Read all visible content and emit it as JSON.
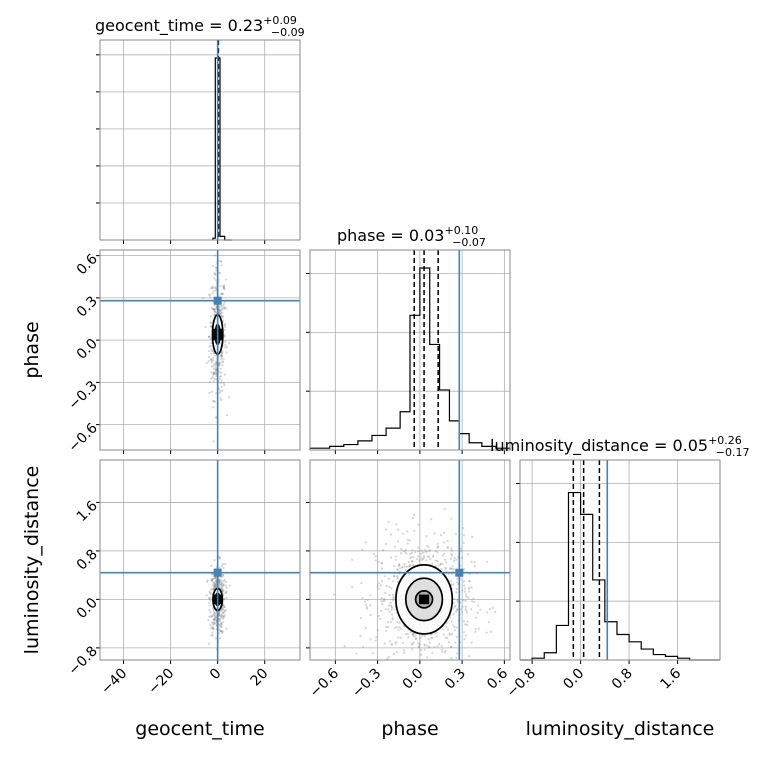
{
  "chart_data": {
    "type": "corner",
    "parameters": [
      "geocent_time",
      "phase",
      "luminosity_distance"
    ],
    "truths": [
      0.0,
      0.28,
      0.44
    ],
    "truth_color": "#4682b4",
    "grid": true,
    "titles": [
      {
        "name": "geocent_time",
        "median": "0.23",
        "plus": "+0.09",
        "minus": "−0.09"
      },
      {
        "name": "phase",
        "median": "0.03",
        "plus": "+0.10",
        "minus": "−0.07"
      },
      {
        "name": "luminosity_distance",
        "median": "0.05",
        "plus": "+0.26",
        "minus": "−0.17"
      }
    ],
    "axes": {
      "geocent_time": {
        "range": [
          -50,
          35
        ],
        "ticks": [
          -40,
          -20,
          0,
          20
        ],
        "tick_labels": [
          "−40",
          "−20",
          "0",
          "20"
        ]
      },
      "phase": {
        "range": [
          -0.78,
          0.64
        ],
        "ticks": [
          -0.6,
          -0.3,
          0.0,
          0.3,
          0.6
        ],
        "tick_labels": [
          "−0.6",
          "−0.3",
          "0.0",
          "0.3",
          "0.6"
        ]
      },
      "luminosity_distance": {
        "range": [
          -1.0,
          2.3
        ],
        "ticks": [
          -0.8,
          0.0,
          0.8,
          1.6
        ],
        "tick_labels": [
          "−0.8",
          "0.0",
          "0.8",
          "1.6"
        ]
      }
    },
    "marginals": {
      "geocent_time": {
        "bin_edges": [
          -2,
          -1,
          0,
          1,
          2,
          3,
          6
        ],
        "counts": [
          0.01,
          1.0,
          1.0,
          0.02,
          0.02,
          0.0
        ],
        "quantiles": [
          0.14,
          0.23,
          0.32
        ]
      },
      "phase": {
        "bin_edges": [
          -0.78,
          -0.64,
          -0.54,
          -0.44,
          -0.34,
          -0.24,
          -0.14,
          -0.07,
          0.0,
          0.07,
          0.14,
          0.21,
          0.28,
          0.35,
          0.44,
          0.54,
          0.64
        ],
        "counts": [
          0.01,
          0.02,
          0.03,
          0.05,
          0.08,
          0.12,
          0.21,
          0.74,
          1.0,
          0.58,
          0.33,
          0.16,
          0.09,
          0.04,
          0.02,
          0.01
        ],
        "quantiles": [
          -0.04,
          0.03,
          0.13
        ]
      },
      "luminosity_distance": {
        "bin_edges": [
          -1.0,
          -0.8,
          -0.6,
          -0.4,
          -0.2,
          0.0,
          0.2,
          0.4,
          0.6,
          0.8,
          1.0,
          1.2,
          1.4,
          1.6,
          1.8,
          2.3
        ],
        "counts": [
          0.0,
          0.01,
          0.04,
          0.19,
          0.92,
          0.8,
          0.44,
          0.21,
          0.14,
          0.1,
          0.06,
          0.03,
          0.02,
          0.01,
          0.0
        ],
        "quantiles": [
          -0.12,
          0.05,
          0.31
        ]
      }
    },
    "contours": [
      {
        "x": "geocent_time",
        "y": "phase",
        "center": [
          0,
          0.04
        ],
        "levels": [
          {
            "rx": 1.0,
            "ry": 0.07
          },
          {
            "rx": 2.2,
            "ry": 0.14
          }
        ],
        "core": [
          1.2,
          0.04
        ]
      },
      {
        "x": "geocent_time",
        "y": "luminosity_distance",
        "center": [
          0,
          0.0
        ],
        "levels": [
          {
            "rx": 1.0,
            "ry": 0.1
          },
          {
            "rx": 2.0,
            "ry": 0.18
          }
        ],
        "core": [
          1.2,
          0.06
        ]
      },
      {
        "x": "phase",
        "y": "luminosity_distance",
        "center": [
          0.03,
          0.0
        ],
        "levels": [
          {
            "rx": 0.06,
            "ry": 0.14
          },
          {
            "rx": 0.13,
            "ry": 0.35
          },
          {
            "rx": 0.2,
            "ry": 0.57
          }
        ],
        "core": [
          0.03,
          0.06
        ]
      }
    ]
  }
}
